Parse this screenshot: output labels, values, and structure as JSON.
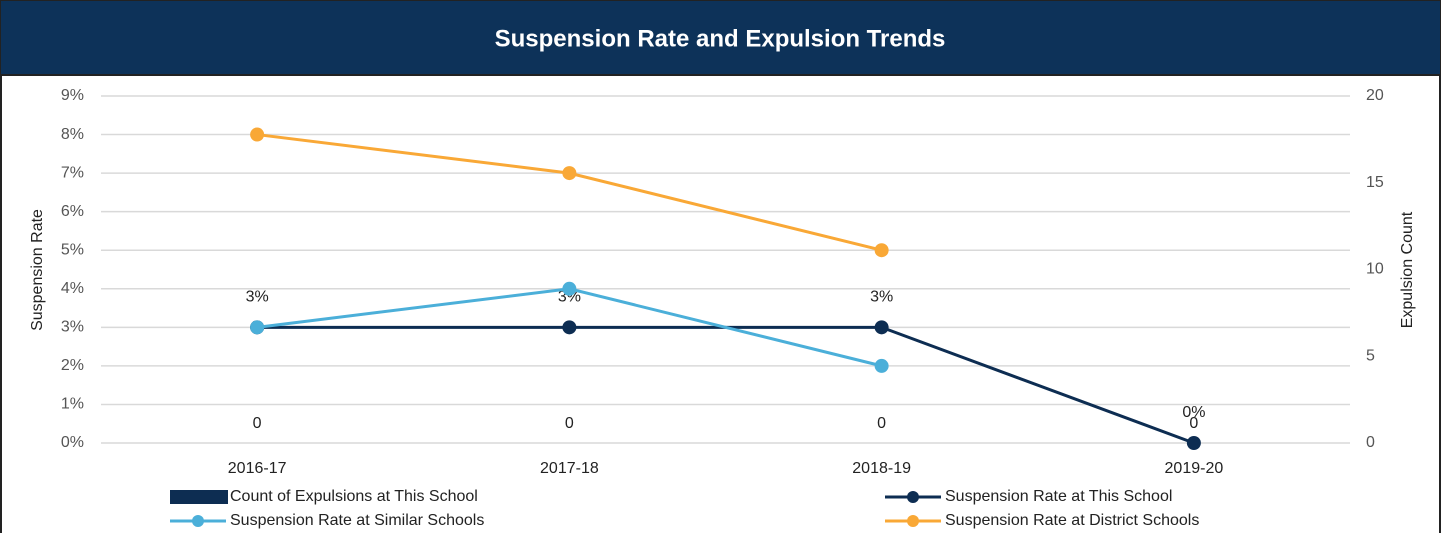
{
  "chart_data": {
    "type": "line",
    "title": "Suspension Rate and Expulsion Trends",
    "y_label": "Suspension Rate",
    "y2_label": "Expulsion Count",
    "categories": [
      "2016-17",
      "2017-18",
      "2018-19",
      "2019-20"
    ],
    "ylim": [
      0,
      9
    ],
    "yticks": [
      {
        "value": 0,
        "label": "0%"
      },
      {
        "value": 1,
        "label": "1%"
      },
      {
        "value": 2,
        "label": "2%"
      },
      {
        "value": 3,
        "label": "3%"
      },
      {
        "value": 4,
        "label": "4%"
      },
      {
        "value": 5,
        "label": "5%"
      },
      {
        "value": 6,
        "label": "6%"
      },
      {
        "value": 7,
        "label": "7%"
      },
      {
        "value": 8,
        "label": "8%"
      },
      {
        "value": 9,
        "label": "9%"
      }
    ],
    "y2lim": [
      0,
      20
    ],
    "y2ticks": [
      0,
      5,
      10,
      15,
      20
    ],
    "grid": true,
    "legend": "bottom",
    "series": [
      {
        "name": "Count of Expulsions at This School",
        "type": "bar",
        "axis": "y2",
        "color": "#0d2d52",
        "values": [
          0,
          0,
          0,
          0
        ]
      },
      {
        "name": "Suspension Rate at This School",
        "type": "line",
        "color": "#0d2d52",
        "values": [
          3,
          3,
          3,
          0
        ],
        "value_labels": [
          "3%",
          "3%",
          "3%",
          "0%"
        ]
      },
      {
        "name": "Suspension Rate at Similar Schools",
        "type": "line",
        "color": "#4bafd9",
        "values": [
          3,
          4,
          2,
          null
        ]
      },
      {
        "name": "Suspension Rate at District Schools",
        "type": "line",
        "color": "#f9a836",
        "values": [
          8,
          7,
          5,
          null
        ]
      }
    ]
  }
}
